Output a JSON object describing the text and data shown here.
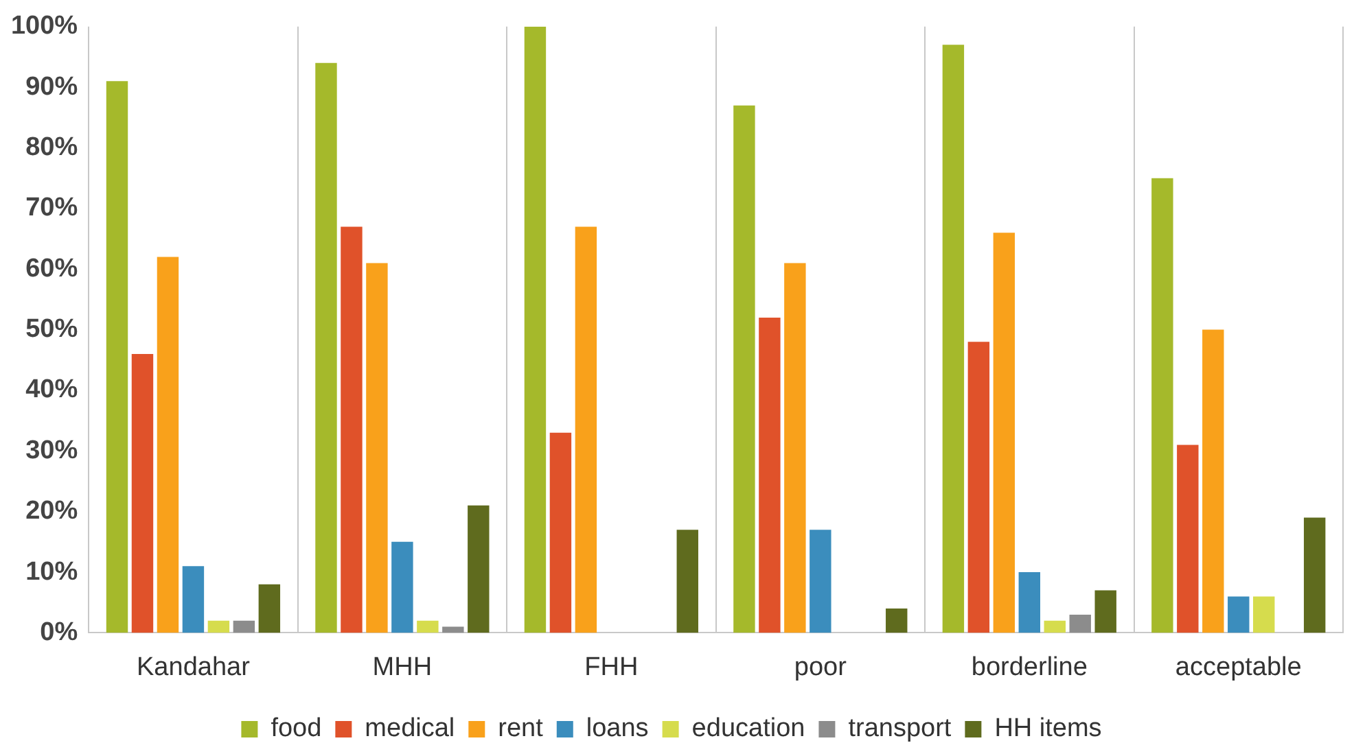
{
  "chart_data": {
    "type": "bar",
    "categories": [
      "Kandahar",
      "MHH",
      "FHH",
      "poor",
      "borderline",
      "acceptable"
    ],
    "series": [
      {
        "name": "food",
        "color": "#a5b92b",
        "values": [
          91,
          94,
          100,
          87,
          97,
          75
        ]
      },
      {
        "name": "medical",
        "color": "#e0522a",
        "values": [
          46,
          67,
          33,
          52,
          48,
          31
        ]
      },
      {
        "name": "rent",
        "color": "#f9a11b",
        "values": [
          62,
          61,
          67,
          61,
          66,
          50
        ]
      },
      {
        "name": "loans",
        "color": "#3b8dbd",
        "values": [
          11,
          15,
          0,
          17,
          10,
          6
        ]
      },
      {
        "name": "education",
        "color": "#d6dc4d",
        "values": [
          2,
          2,
          0,
          0,
          2,
          6
        ]
      },
      {
        "name": "transport",
        "color": "#8c8c8c",
        "values": [
          2,
          1,
          0,
          0,
          3,
          0
        ]
      },
      {
        "name": "HH items",
        "color": "#5f6b1e",
        "values": [
          8,
          21,
          17,
          4,
          7,
          19
        ]
      }
    ],
    "ylim": [
      0,
      100
    ],
    "yticks": [
      {
        "value": 0,
        "label": "0%"
      },
      {
        "value": 10,
        "label": "10%"
      },
      {
        "value": 20,
        "label": "20%"
      },
      {
        "value": 30,
        "label": "30%"
      },
      {
        "value": 40,
        "label": "40%"
      },
      {
        "value": 50,
        "label": "50%"
      },
      {
        "value": 60,
        "label": "60%"
      },
      {
        "value": 70,
        "label": "70%"
      },
      {
        "value": 80,
        "label": "80%"
      },
      {
        "value": 90,
        "label": "90%"
      },
      {
        "value": 100,
        "label": "100%"
      }
    ],
    "grid": "x",
    "legend": "bottom"
  }
}
